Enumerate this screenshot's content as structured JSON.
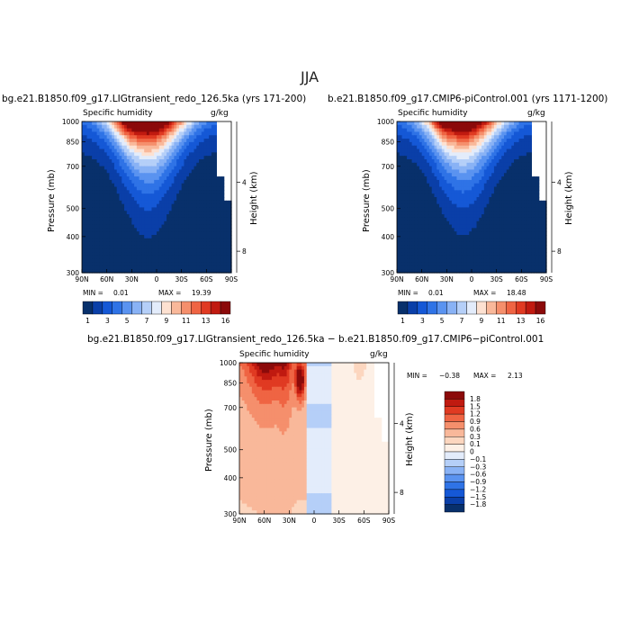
{
  "figure": {
    "season": "JJA"
  },
  "chart_data": [
    {
      "type": "contour",
      "panel": "top-left",
      "title": "bg.e21.B1850.f09_g17.LIGtransient_redo_126.5ka (yrs 171-200)",
      "variable": "Specific humidity",
      "units": "g/kg",
      "xlabel": "",
      "ylabel": "Pressure (mb)",
      "y2label": "Height (km)",
      "xticks": [
        "90N",
        "60N",
        "30N",
        "0",
        "30S",
        "60S",
        "90S"
      ],
      "yticks": [
        "300",
        "400",
        "500",
        "700",
        "850",
        "1000"
      ],
      "y2ticks": [
        "8",
        "4"
      ],
      "min_label": "MIN =",
      "min": "0.01",
      "max_label": "MAX =",
      "max": "19.39",
      "colorbar": [
        "1",
        "3",
        "5",
        "7",
        "9",
        "11",
        "13",
        "16"
      ]
    },
    {
      "type": "contour",
      "panel": "top-right",
      "title": "b.e21.B1850.f09_g17.CMIP6-piControl.001 (yrs 1171-1200)",
      "variable": "Specific humidity",
      "units": "g/kg",
      "xlabel": "",
      "ylabel": "Pressure (mb)",
      "y2label": "Height (km)",
      "xticks": [
        "90N",
        "60N",
        "30N",
        "0",
        "30S",
        "60S",
        "90S"
      ],
      "yticks": [
        "300",
        "400",
        "500",
        "700",
        "850",
        "1000"
      ],
      "y2ticks": [
        "8",
        "4"
      ],
      "min_label": "MIN =",
      "min": "0.01",
      "max_label": "MAX =",
      "max": "18.48",
      "colorbar": [
        "1",
        "3",
        "5",
        "7",
        "9",
        "11",
        "13",
        "16"
      ]
    },
    {
      "type": "contour",
      "panel": "bottom",
      "title": "bg.e21.B1850.f09_g17.LIGtransient_redo_126.5ka − b.e21.B1850.f09_g17.CMIP6−piControl.001",
      "variable": "Specific humidity",
      "units": "g/kg",
      "xlabel": "",
      "ylabel": "Pressure (mb)",
      "y2label": "Height (km)",
      "xticks": [
        "90N",
        "60N",
        "30N",
        "0",
        "30S",
        "60S",
        "90S"
      ],
      "yticks": [
        "300",
        "400",
        "500",
        "700",
        "850",
        "1000"
      ],
      "y2ticks": [
        "8",
        "4"
      ],
      "min_label": "MIN =",
      "min": "−0.38",
      "max_label": "MAX =",
      "max": "2.13",
      "colorbar": [
        "1.8",
        "1.5",
        "1.2",
        "0.9",
        "0.6",
        "0.3",
        "0.1",
        "0",
        "−0.1",
        "−0.3",
        "−0.6",
        "−0.9",
        "−1.2",
        "−1.5",
        "−1.8"
      ]
    }
  ],
  "colors": {
    "seq": [
      "#08306b",
      "#0a3fa8",
      "#1558d6",
      "#2f73e6",
      "#5a93f0",
      "#89b2f5",
      "#b5cff8",
      "#e3ecfb",
      "#fde1d1",
      "#f9b89a",
      "#f58f6c",
      "#ef6443",
      "#e03a22",
      "#c01a10",
      "#8b0a0a"
    ],
    "div": [
      "#8b0a0a",
      "#c01a10",
      "#e03a22",
      "#ef6443",
      "#f58f6c",
      "#f9b89a",
      "#fcd6bf",
      "#fdf0e6",
      "#e3ecfb",
      "#b5cff8",
      "#89b2f5",
      "#5a93f0",
      "#2f73e6",
      "#1558d6",
      "#0a3fa8",
      "#08306b"
    ]
  }
}
